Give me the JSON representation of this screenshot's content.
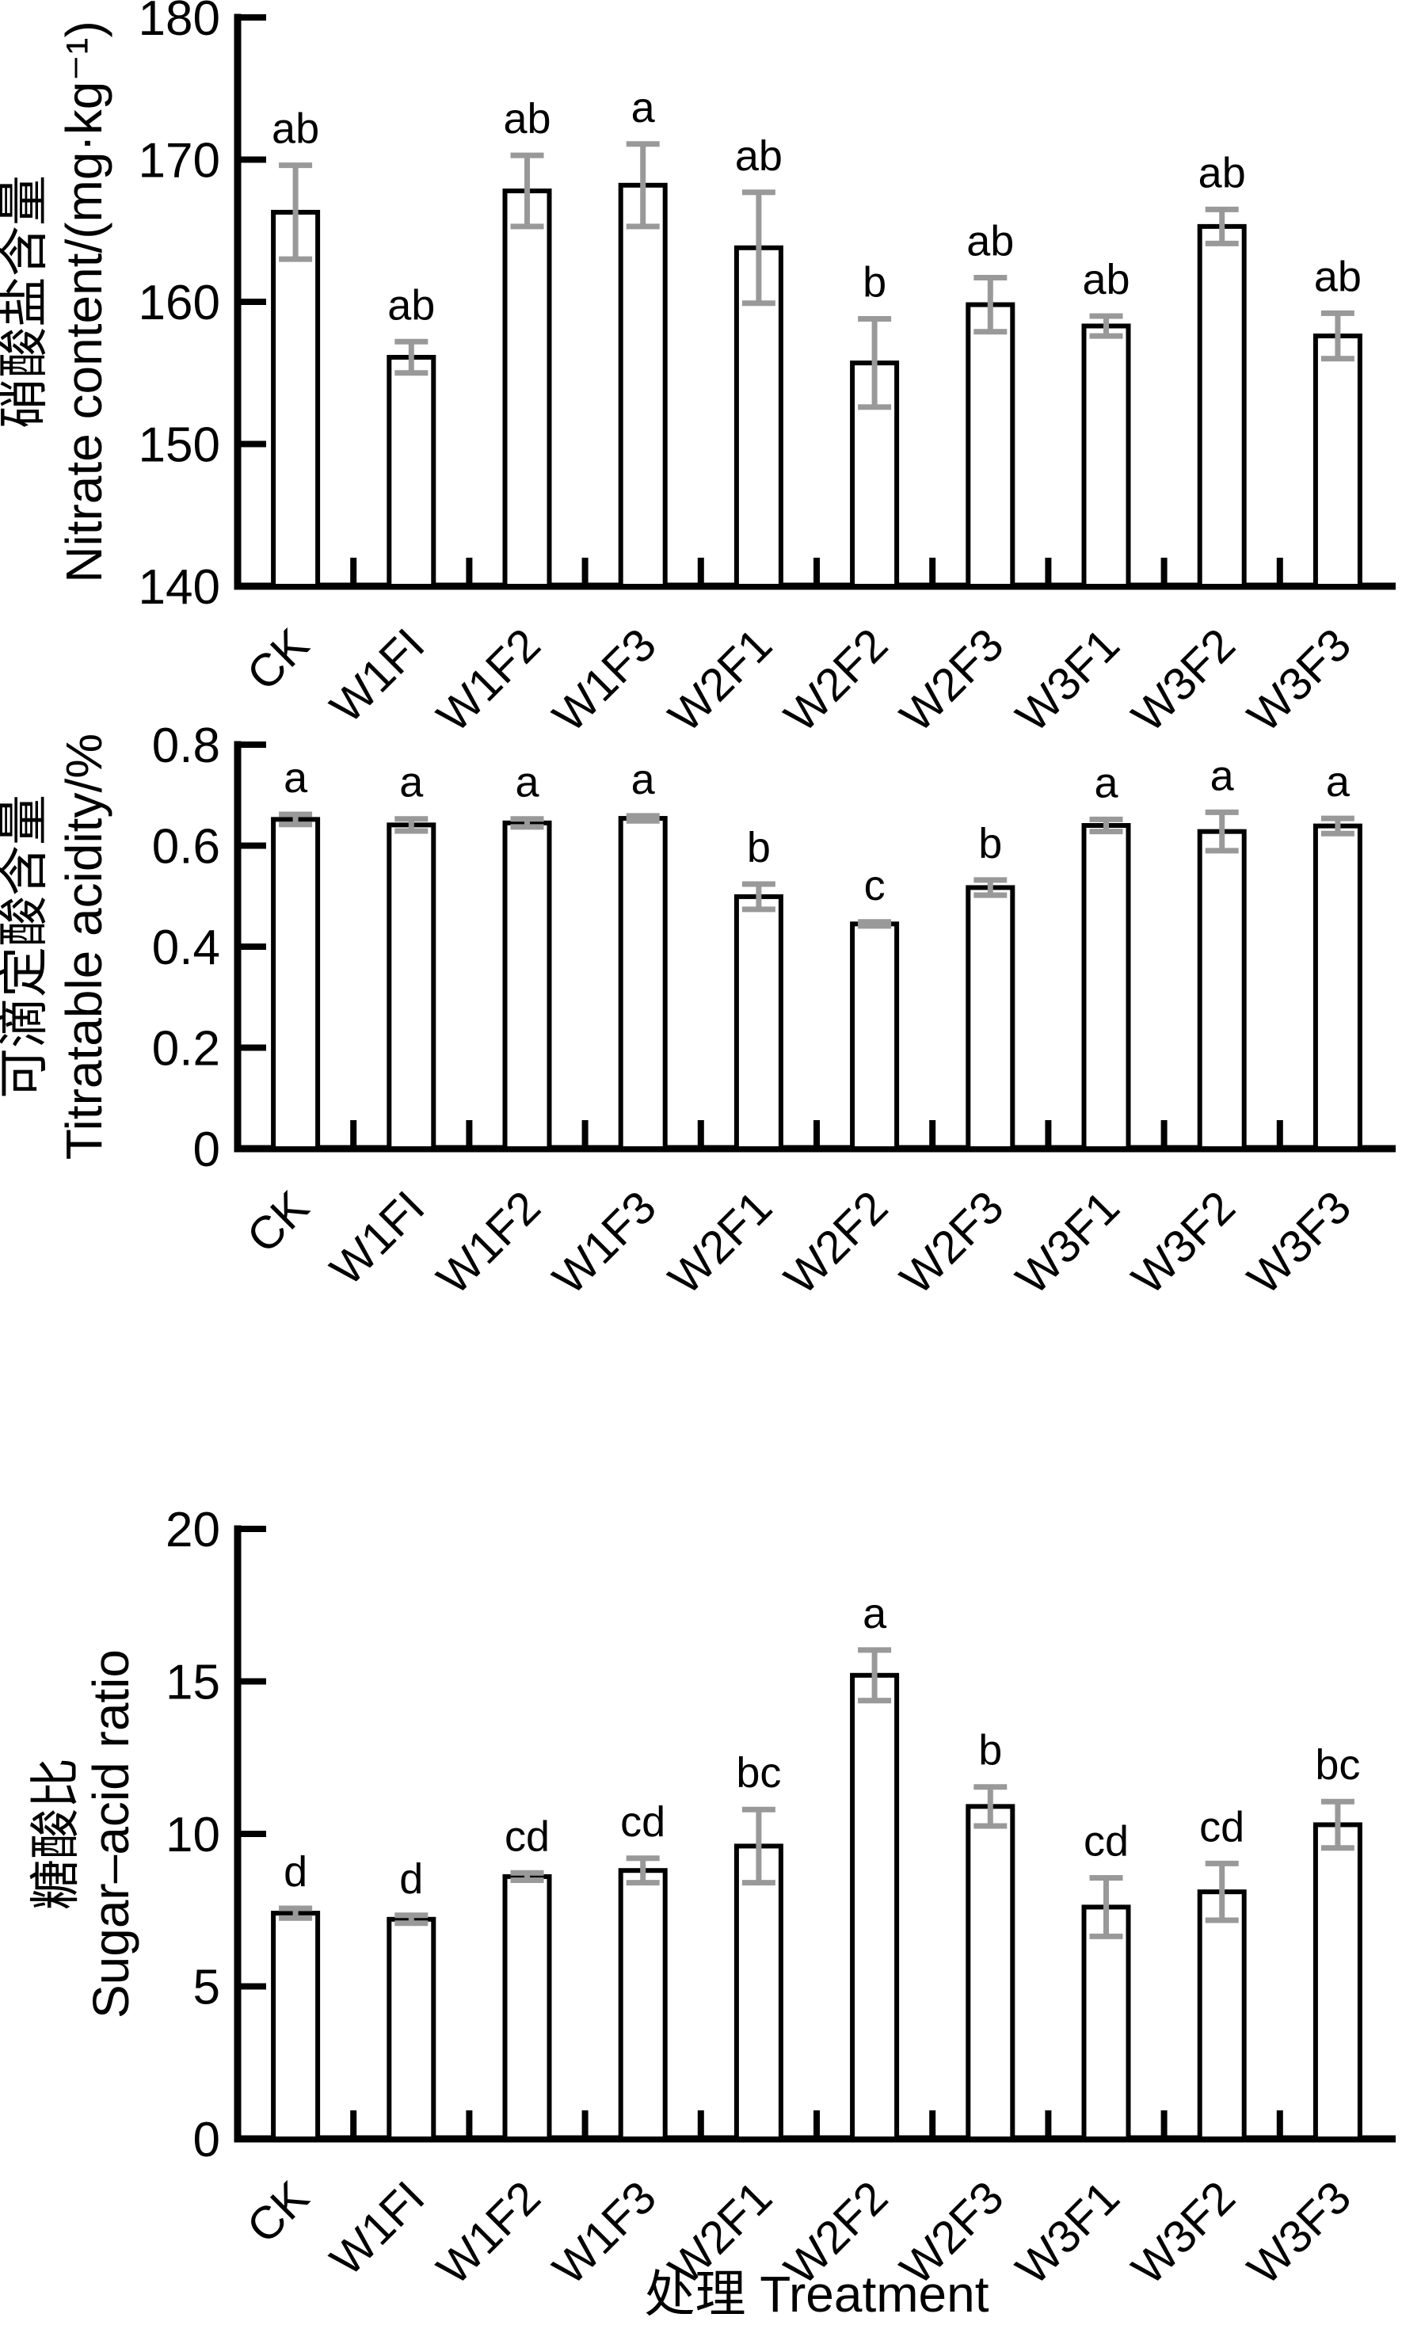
{
  "figure": {
    "xlabel": "处理 Treatment",
    "bar_fill": "#ffffff",
    "bar_stroke": "#000000",
    "error_color": "#999999",
    "axis_color": "#000000",
    "categories": [
      "CK",
      "W1FI",
      "W1F2",
      "W1F3",
      "W2F1",
      "W2F2",
      "W2F3",
      "W3F1",
      "W3F2",
      "W3F3"
    ]
  },
  "chart_data": [
    {
      "type": "bar",
      "title": "",
      "ylabel_zh": "硝酸盐含量",
      "ylabel_en": "Nitrate content/(mg·kg⁻¹)",
      "xlabel": "",
      "ylim": [
        140,
        180
      ],
      "yticks": [
        140,
        150,
        160,
        170,
        180
      ],
      "ytick_labels": [
        "140",
        "150",
        "160",
        "170",
        "180"
      ],
      "grid": "off",
      "legend": "none",
      "categories": [
        "CK",
        "W1FI",
        "W1F2",
        "W1F3",
        "W2F1",
        "W2F2",
        "W2F3",
        "W3F1",
        "W3F2",
        "W3F3"
      ],
      "values": [
        166.3,
        156.1,
        167.8,
        168.2,
        163.8,
        155.7,
        159.8,
        158.3,
        165.3,
        157.6
      ],
      "errors": [
        3.3,
        1.1,
        2.5,
        2.9,
        3.9,
        3.1,
        1.9,
        0.7,
        1.2,
        1.6
      ],
      "sig_letters": [
        "ab",
        "ab",
        "ab",
        "a",
        "ab",
        "b",
        "ab",
        "ab",
        "ab",
        "ab"
      ]
    },
    {
      "type": "bar",
      "title": "",
      "ylabel_zh": "可滴定酸含量",
      "ylabel_en": "Titratable acidity/%",
      "xlabel": "",
      "ylim": [
        0,
        0.8
      ],
      "yticks": [
        0,
        0.2,
        0.4,
        0.6,
        0.8
      ],
      "ytick_labels": [
        "0",
        "0.2",
        "0.4",
        "0.6",
        "0.8"
      ],
      "grid": "off",
      "legend": "none",
      "categories": [
        "CK",
        "W1FI",
        "W1F2",
        "W1F3",
        "W2F1",
        "W2F2",
        "W2F3",
        "W3F1",
        "W3F2",
        "W3F3"
      ],
      "values": [
        0.652,
        0.641,
        0.645,
        0.654,
        0.499,
        0.445,
        0.517,
        0.64,
        0.628,
        0.639
      ],
      "errors": [
        0.01,
        0.012,
        0.008,
        0.005,
        0.025,
        0.004,
        0.015,
        0.012,
        0.038,
        0.015
      ],
      "sig_letters": [
        "a",
        "a",
        "a",
        "a",
        "b",
        "c",
        "b",
        "a",
        "a",
        "a"
      ]
    },
    {
      "type": "bar",
      "title": "",
      "ylabel_zh": "糖酸比",
      "ylabel_en": "Sugar–acid ratio",
      "xlabel": "处理 Treatment",
      "ylim": [
        0,
        20
      ],
      "yticks": [
        0,
        5,
        10,
        15,
        20
      ],
      "ytick_labels": [
        "0",
        "5",
        "10",
        "15",
        "20"
      ],
      "grid": "off",
      "legend": "none",
      "categories": [
        "CK",
        "W1FI",
        "W1F2",
        "W1F3",
        "W2F1",
        "W2F2",
        "W2F3",
        "W3F1",
        "W3F2",
        "W3F3"
      ],
      "values": [
        7.4,
        7.2,
        8.6,
        8.8,
        9.6,
        15.2,
        10.9,
        7.6,
        8.1,
        10.3
      ],
      "errors": [
        0.16,
        0.13,
        0.12,
        0.4,
        1.2,
        0.83,
        0.64,
        0.96,
        0.93,
        0.76
      ],
      "sig_letters": [
        "d",
        "d",
        "cd",
        "cd",
        "bc",
        "a",
        "b",
        "cd",
        "cd",
        "bc"
      ]
    }
  ]
}
